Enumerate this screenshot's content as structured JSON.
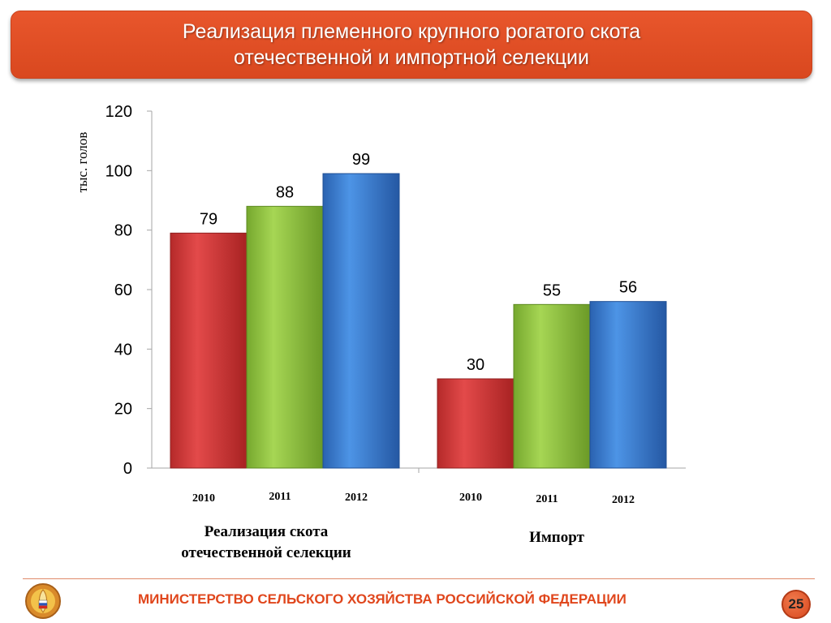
{
  "title": {
    "line1": "Реализация племенного крупного рогатого скота",
    "line2": "отечественной и импортной селекции"
  },
  "chart_data": {
    "type": "bar",
    "ylabel": "тыс. голов",
    "ylim": [
      0,
      120
    ],
    "yticks": [
      0,
      20,
      40,
      60,
      80,
      100,
      120
    ],
    "grid": false,
    "groups": [
      {
        "label_line1": "Реализация скота",
        "label_line2": "отечественной селекции",
        "categories": [
          "2010",
          "2011",
          "2012"
        ],
        "values": [
          79,
          88,
          99
        ]
      },
      {
        "label_line1": "Импорт",
        "label_line2": "",
        "categories": [
          "2010",
          "2011",
          "2012"
        ],
        "values": [
          30,
          55,
          56
        ]
      }
    ],
    "bar_colors": [
      "#d93a3a",
      "#92c83e",
      "#3a7fd6"
    ]
  },
  "footer": {
    "ministry": "МИНИСТЕРСТВО СЕЛЬСКОГО ХОЗЯЙСТВА РОССИЙСКОЙ ФЕДЕРАЦИИ",
    "page_number": "25",
    "logo_icon": "ministry-emblem-icon"
  },
  "colors": {
    "accent": "#e0461c",
    "banner": "#e8562c"
  }
}
